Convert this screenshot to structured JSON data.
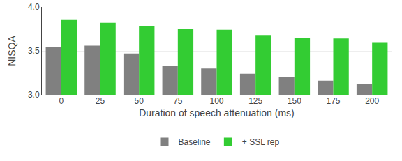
{
  "chart_data": {
    "type": "bar",
    "categories": [
      0,
      25,
      50,
      75,
      100,
      125,
      150,
      175,
      200
    ],
    "series": [
      {
        "name": "Baseline",
        "color": "#808080",
        "values": [
          3.54,
          3.56,
          3.47,
          3.33,
          3.3,
          3.24,
          3.2,
          3.16,
          3.12
        ]
      },
      {
        "name": "+ SSL rep",
        "color": "#33cc33",
        "values": [
          3.86,
          3.82,
          3.78,
          3.75,
          3.74,
          3.68,
          3.65,
          3.64,
          3.6
        ]
      }
    ],
    "xlabel": "Duration of speech attenuation (ms)",
    "ylabel": "NISQA",
    "ylim": [
      3.0,
      4.0
    ],
    "yticks": [
      {
        "value": 3.0,
        "label": "3.0"
      },
      3.5,
      {
        "value": 4.0,
        "label": "4.0"
      }
    ],
    "grid": true,
    "legend": "bottom"
  }
}
